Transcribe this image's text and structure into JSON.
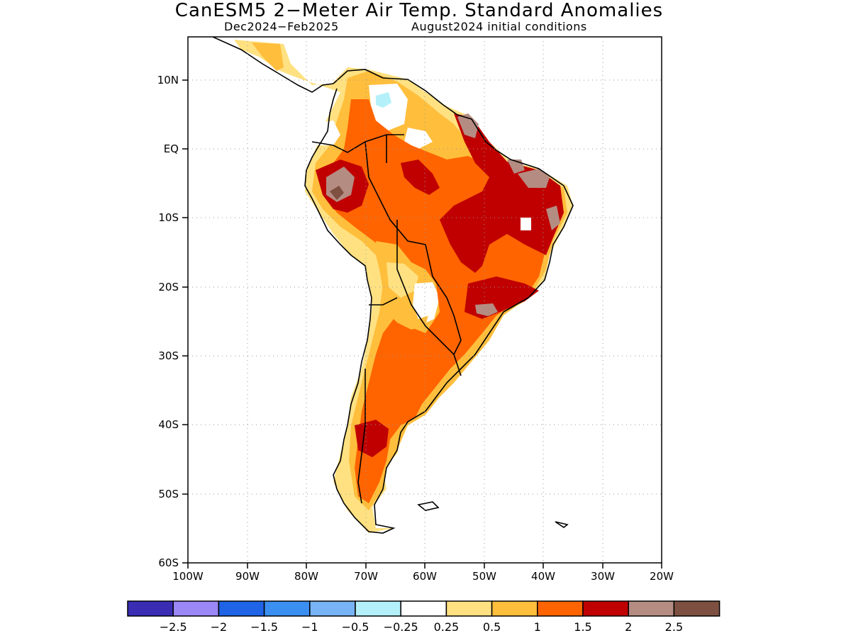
{
  "title": "CanESM5 2−Meter Air Temp. Standard Anomalies",
  "subtitle_left": "Dec2024−Feb2025",
  "subtitle_right": "August2024 initial conditions",
  "lat_labels": [
    "10N",
    "EQ",
    "10S",
    "20S",
    "30S",
    "40S",
    "50S",
    "60S"
  ],
  "lon_labels": [
    "100W",
    "90W",
    "80W",
    "70W",
    "60W",
    "50W",
    "40W",
    "30W",
    "20W"
  ],
  "colorbar": {
    "colors": [
      "#3a2db4",
      "#9b87f5",
      "#1f64e6",
      "#3b8ff0",
      "#78b4f5",
      "#b4f0fa",
      "#ffffff",
      "#ffe182",
      "#ffbe3c",
      "#ff6400",
      "#c00000",
      "#b48c82",
      "#7d5041"
    ],
    "labels": [
      "−2.5",
      "−2",
      "−1.5",
      "−1",
      "−0.5",
      "−0.25",
      "0.25",
      "0.5",
      "1",
      "1.5",
      "2",
      "2.5"
    ]
  }
}
